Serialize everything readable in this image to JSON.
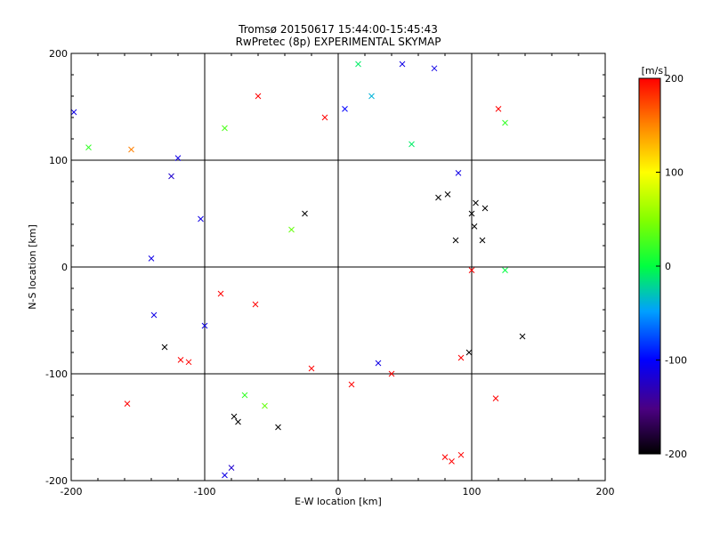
{
  "chart_data": {
    "type": "scatter",
    "title": "Tromsø 20150617 15:44:00-15:45:43",
    "subtitle": "RwPretec (8p) EXPERIMENTAL SKYMAP",
    "xlabel": "E-W location [km]",
    "ylabel": "N-S location [km]",
    "xlim": [
      -200,
      200
    ],
    "ylim": [
      -200,
      200
    ],
    "xticks": [
      "-200",
      "-100",
      "0",
      "100",
      "200"
    ],
    "yticks": [
      "-200",
      "-100",
      "0",
      "100",
      "200"
    ],
    "grid": true,
    "colorbar": {
      "label": "[m/s]",
      "range": [
        -200,
        200
      ],
      "ticks": [
        "200",
        "100",
        "0",
        "-100",
        "-200"
      ],
      "colors": [
        "#000000",
        "#4b0082",
        "#0000ff",
        "#00c0ff",
        "#00ff40",
        "#ffff00",
        "#ff8000",
        "#ff0000"
      ]
    },
    "points": [
      {
        "x": -198,
        "y": 145,
        "v": -110,
        "m": "x"
      },
      {
        "x": -187,
        "y": 112,
        "v": 20,
        "m": "x"
      },
      {
        "x": -158,
        "y": -128,
        "v": 200,
        "m": "x"
      },
      {
        "x": -155,
        "y": 110,
        "v": 150,
        "m": "x"
      },
      {
        "x": -140,
        "y": 8,
        "v": -110,
        "m": "x"
      },
      {
        "x": -138,
        "y": -45,
        "v": -110,
        "m": "x"
      },
      {
        "x": -125,
        "y": 85,
        "v": -120,
        "m": "x"
      },
      {
        "x": -118,
        "y": -87,
        "v": 200,
        "m": "x"
      },
      {
        "x": -112,
        "y": -89,
        "v": 200,
        "m": "x"
      },
      {
        "x": -103,
        "y": 45,
        "v": -110,
        "m": "x"
      },
      {
        "x": -100,
        "y": -55,
        "v": -110,
        "m": "x"
      },
      {
        "x": -120,
        "y": 102,
        "v": -110,
        "m": "x"
      },
      {
        "x": -88,
        "y": -25,
        "v": 200,
        "m": "x"
      },
      {
        "x": -85,
        "y": 130,
        "v": 30,
        "m": "x"
      },
      {
        "x": -78,
        "y": -140,
        "v": -200,
        "m": "x"
      },
      {
        "x": -75,
        "y": -145,
        "v": -200,
        "m": "x"
      },
      {
        "x": -80,
        "y": -188,
        "v": -120,
        "m": "x"
      },
      {
        "x": -85,
        "y": -195,
        "v": -110,
        "m": "x"
      },
      {
        "x": -60,
        "y": 160,
        "v": 200,
        "m": "x"
      },
      {
        "x": -55,
        "y": -130,
        "v": 40,
        "m": "x"
      },
      {
        "x": -45,
        "y": -150,
        "v": -200,
        "m": "x"
      },
      {
        "x": -35,
        "y": 35,
        "v": 40,
        "m": "x"
      },
      {
        "x": -25,
        "y": 50,
        "v": -200,
        "m": "x"
      },
      {
        "x": -20,
        "y": -95,
        "v": 200,
        "m": "x"
      },
      {
        "x": -10,
        "y": 140,
        "v": 200,
        "m": "x"
      },
      {
        "x": 5,
        "y": 148,
        "v": -100,
        "m": "x"
      },
      {
        "x": 10,
        "y": -110,
        "v": 200,
        "m": "x"
      },
      {
        "x": 15,
        "y": 190,
        "v": -10,
        "m": "x"
      },
      {
        "x": 25,
        "y": 160,
        "v": -40,
        "m": "x"
      },
      {
        "x": 30,
        "y": -90,
        "v": -110,
        "m": "x"
      },
      {
        "x": 40,
        "y": -100,
        "v": 200,
        "m": "x"
      },
      {
        "x": 48,
        "y": 190,
        "v": -110,
        "m": "x"
      },
      {
        "x": 55,
        "y": 115,
        "v": -10,
        "m": "x"
      },
      {
        "x": 72,
        "y": 186,
        "v": -110,
        "m": "x"
      },
      {
        "x": 75,
        "y": 65,
        "v": -200,
        "m": "x"
      },
      {
        "x": 82,
        "y": 68,
        "v": -200,
        "m": "x"
      },
      {
        "x": 90,
        "y": 88,
        "v": -110,
        "m": "x"
      },
      {
        "x": 92,
        "y": -85,
        "v": 200,
        "m": "x"
      },
      {
        "x": 98,
        "y": -80,
        "v": -200,
        "m": "x"
      },
      {
        "x": 100,
        "y": -3,
        "v": 200,
        "m": "x"
      },
      {
        "x": 102,
        "y": 38,
        "v": -200,
        "m": "x"
      },
      {
        "x": 108,
        "y": 25,
        "v": -200,
        "m": "x"
      },
      {
        "x": 120,
        "y": 148,
        "v": 200,
        "m": "x"
      },
      {
        "x": 125,
        "y": 135,
        "v": 20,
        "m": "x"
      },
      {
        "x": 125,
        "y": -3,
        "v": 0,
        "m": "x"
      },
      {
        "x": 138,
        "y": -65,
        "v": -200,
        "m": "x"
      },
      {
        "x": 85,
        "y": -182,
        "v": 200,
        "m": "x"
      },
      {
        "x": 80,
        "y": -178,
        "v": 200,
        "m": "x"
      },
      {
        "x": 92,
        "y": -176,
        "v": 200,
        "m": "x"
      },
      {
        "x": 118,
        "y": -123,
        "v": 200,
        "m": "x"
      },
      {
        "x": -130,
        "y": -75,
        "v": -200,
        "m": "x"
      },
      {
        "x": -70,
        "y": -120,
        "v": 20,
        "m": "x"
      },
      {
        "x": -62,
        "y": -35,
        "v": 200,
        "m": "x"
      },
      {
        "x": 100,
        "y": 50,
        "v": -200,
        "m": "x"
      },
      {
        "x": 110,
        "y": 55,
        "v": -200,
        "m": "x"
      },
      {
        "x": 103,
        "y": 60,
        "v": -200,
        "m": "x"
      },
      {
        "x": 88,
        "y": 25,
        "v": -200,
        "m": "x"
      }
    ]
  }
}
